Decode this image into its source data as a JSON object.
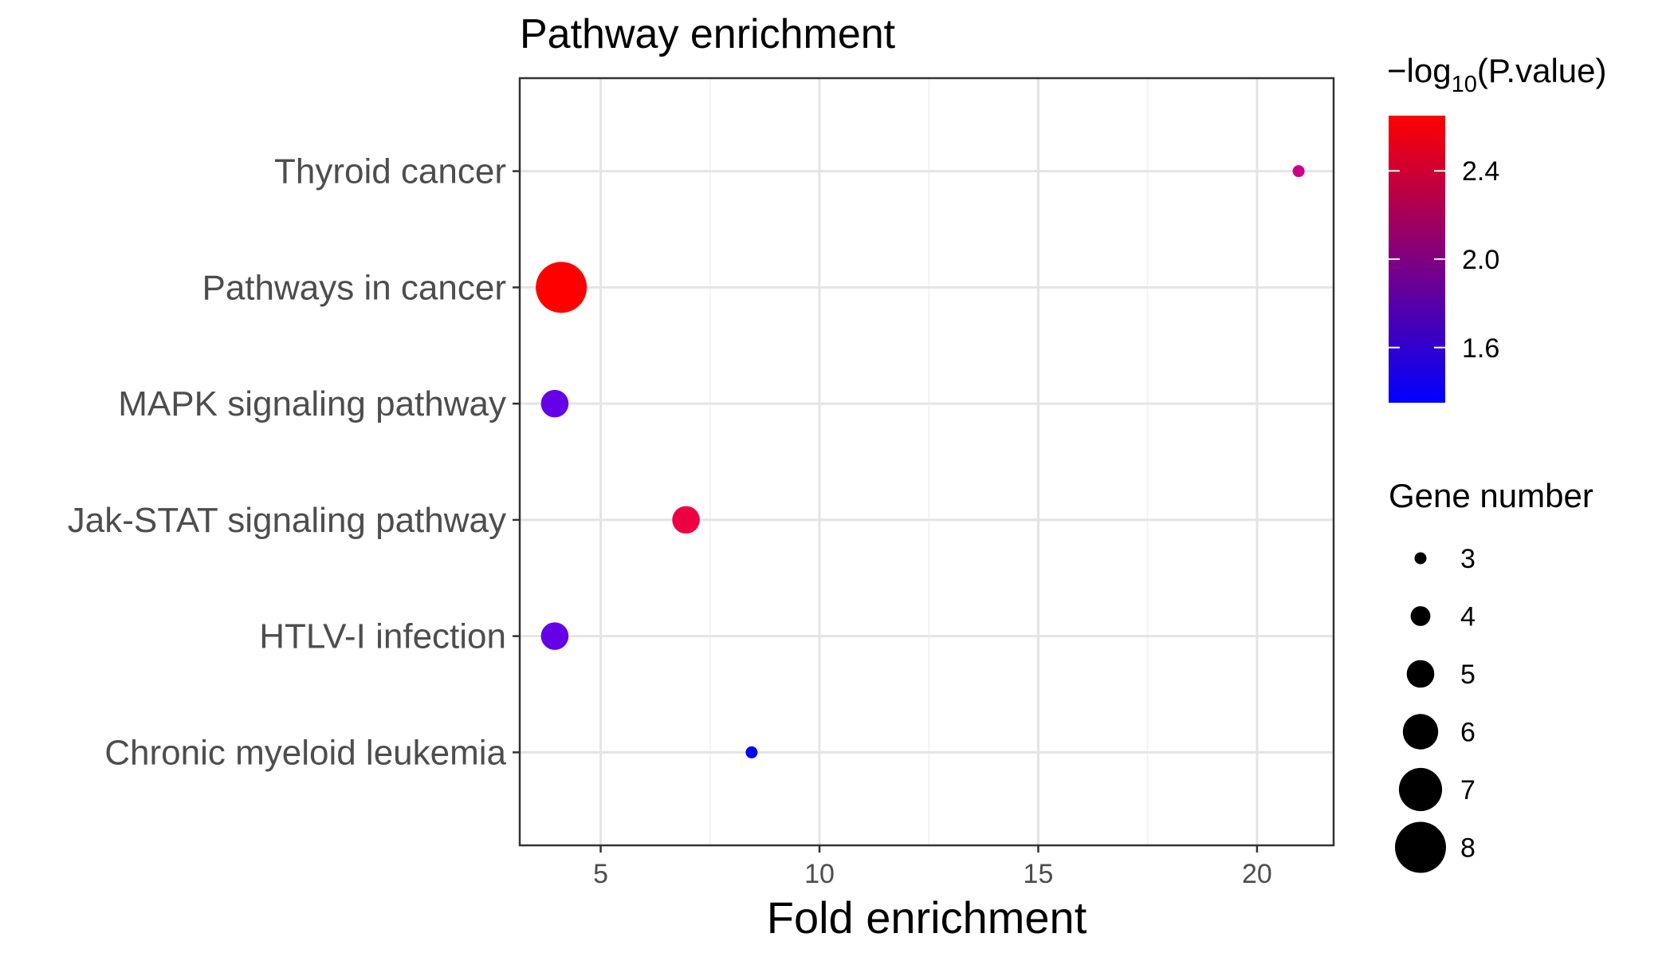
{
  "chart_data": {
    "type": "scatter",
    "title": "Pathway enrichment",
    "xlabel": "Fold enrichment",
    "ylabel": "",
    "xlim": [
      3.15,
      21.75
    ],
    "xticks": [
      5,
      10,
      15,
      20
    ],
    "categories": [
      "Thyroid cancer",
      "Pathways in cancer",
      "MAPK signaling pathway",
      "Jak-STAT signaling pathway",
      "HTLV-I infection",
      "Chronic myeloid leukemia"
    ],
    "points": [
      {
        "category": "Thyroid cancer",
        "fold_enrichment": 20.95,
        "gene_number": 3,
        "neg_log10_p": 2.05,
        "color": "#cc0088"
      },
      {
        "category": "Pathways in cancer",
        "fold_enrichment": 4.1,
        "gene_number": 8,
        "neg_log10_p": 2.65,
        "color": "#ff0000"
      },
      {
        "category": "MAPK signaling pathway",
        "fold_enrichment": 3.95,
        "gene_number": 5,
        "neg_log10_p": 1.6,
        "color": "#6600e6"
      },
      {
        "category": "Jak-STAT signaling pathway",
        "fold_enrichment": 6.95,
        "gene_number": 5,
        "neg_log10_p": 2.3,
        "color": "#ee0044"
      },
      {
        "category": "HTLV-I infection",
        "fold_enrichment": 3.95,
        "gene_number": 5,
        "neg_log10_p": 1.6,
        "color": "#6600e6"
      },
      {
        "category": "Chronic myeloid leukemia",
        "fold_enrichment": 8.45,
        "gene_number": 3,
        "neg_log10_p": 1.35,
        "color": "#0000ff"
      }
    ],
    "color_legend": {
      "title_prefix": "−log",
      "title_subscript": "10",
      "title_suffix": "(P.value)",
      "range": [
        1.35,
        2.65
      ],
      "ticks": [
        "2.4",
        "2.0",
        "1.6"
      ],
      "tick_values": [
        2.4,
        2.0,
        1.6
      ],
      "colors": [
        "#0000ff",
        "#ff0000"
      ]
    },
    "size_legend": {
      "title": "Gene number",
      "values": [
        3,
        4,
        5,
        6,
        7,
        8
      ],
      "labels": [
        "3",
        "4",
        "5",
        "6",
        "7",
        "8"
      ]
    },
    "grid": true,
    "legend_position": "right"
  }
}
